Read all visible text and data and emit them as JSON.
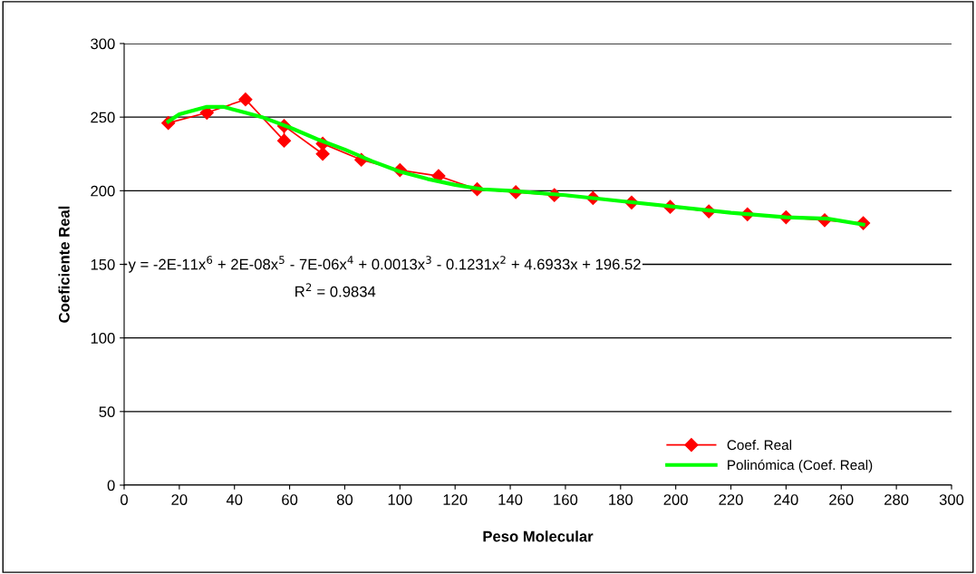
{
  "chart_data": {
    "type": "line",
    "xlabel": "Peso Molecular",
    "ylabel": "Coeficiente Real",
    "xlim": [
      0,
      300
    ],
    "xticks": [
      0,
      20,
      40,
      60,
      80,
      100,
      120,
      140,
      160,
      180,
      200,
      220,
      240,
      260,
      280,
      300
    ],
    "ylim": [
      0,
      300
    ],
    "yticks": [
      0,
      50,
      100,
      150,
      200,
      250,
      300
    ],
    "grid": "y",
    "legend": "bottom right",
    "series": [
      {
        "name": "Coef. Real",
        "color": "#ff0000",
        "marker": "diamond",
        "x": [
          16,
          30,
          44,
          58,
          58,
          72,
          72,
          86,
          100,
          114,
          128,
          142,
          156,
          170,
          184,
          198,
          212,
          226,
          240,
          254,
          268
        ],
        "values": [
          246,
          253,
          262,
          234,
          244,
          225,
          232,
          221,
          214,
          210,
          201,
          199,
          197,
          195,
          192,
          189,
          186,
          184,
          182,
          180,
          178
        ]
      },
      {
        "name": "Polinómica (Coef. Real)",
        "color": "#00ff00",
        "marker": "none",
        "x": [
          16,
          20,
          30,
          36,
          44,
          50,
          60,
          70,
          80,
          90,
          100,
          110,
          120,
          130,
          140,
          160,
          180,
          200,
          220,
          240,
          255,
          268
        ],
        "values": [
          247,
          252,
          257,
          257,
          253,
          250,
          243,
          235,
          228,
          220,
          213,
          208,
          204,
          201,
          200,
          197,
          193,
          189,
          185,
          182,
          181,
          177
        ]
      }
    ],
    "annotations": [
      "y = -2E-11x$^{6}$ + 2E-08x$^{5}$ - 7E-06x$^{4}$ + 0.0013x$^{3}$ - 0.1231x$^{2}$ + 4.6933x + 196.52",
      "R$^{2}$ = 0.9834"
    ]
  }
}
